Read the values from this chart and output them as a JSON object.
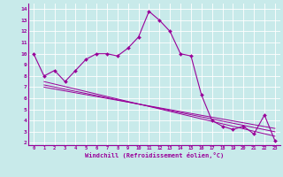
{
  "xlabel": "Windchill (Refroidissement éolien,°C)",
  "bg_color": "#c8eaea",
  "line_color": "#990099",
  "grid_color": "#ffffff",
  "xlim": [
    -0.5,
    23.5
  ],
  "ylim": [
    1.8,
    14.5
  ],
  "xticks": [
    0,
    1,
    2,
    3,
    4,
    5,
    6,
    7,
    8,
    9,
    10,
    11,
    12,
    13,
    14,
    15,
    16,
    17,
    18,
    19,
    20,
    21,
    22,
    23
  ],
  "yticks": [
    2,
    3,
    4,
    5,
    6,
    7,
    8,
    9,
    10,
    11,
    12,
    13,
    14
  ],
  "line1_x": [
    0,
    1,
    2,
    3,
    4,
    5,
    6,
    7,
    8,
    9,
    10,
    11,
    12,
    13,
    14,
    15,
    16,
    17,
    18,
    19,
    20,
    21,
    22,
    23
  ],
  "line1_y": [
    10.0,
    8.0,
    8.5,
    7.5,
    8.5,
    9.5,
    10.0,
    10.0,
    9.8,
    10.5,
    11.5,
    13.8,
    13.0,
    12.0,
    10.0,
    9.8,
    6.3,
    4.0,
    3.5,
    3.2,
    3.5,
    2.8,
    4.5,
    2.2
  ],
  "line2_x": [
    1,
    23
  ],
  "line2_y": [
    7.5,
    2.6
  ],
  "line3_x": [
    1,
    23
  ],
  "line3_y": [
    7.2,
    3.0
  ],
  "line4_x": [
    1,
    23
  ],
  "line4_y": [
    7.0,
    3.3
  ]
}
